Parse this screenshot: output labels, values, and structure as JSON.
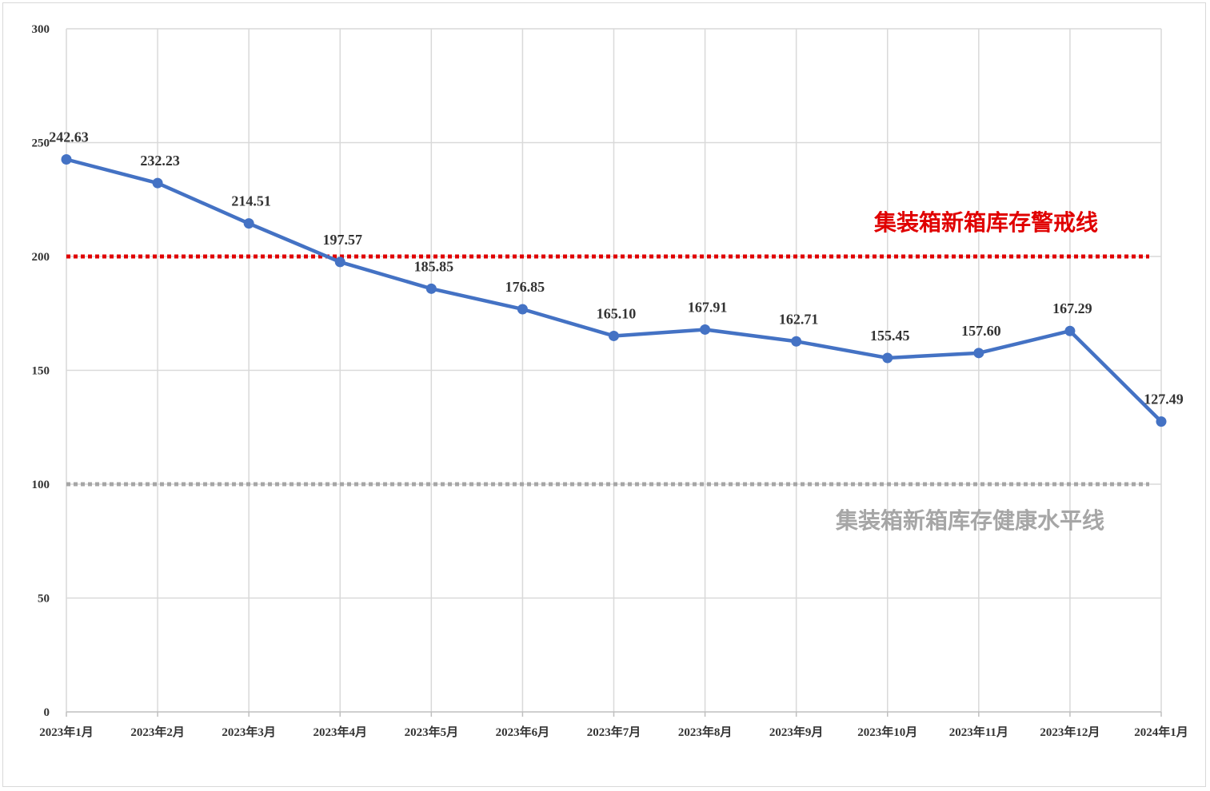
{
  "chart_data": {
    "type": "line",
    "categories": [
      "2023年1月",
      "2023年2月",
      "2023年3月",
      "2023年4月",
      "2023年5月",
      "2023年6月",
      "2023年7月",
      "2023年8月",
      "2023年9月",
      "2023年10月",
      "2023年11月",
      "2023年12月",
      "2024年1月"
    ],
    "series": [
      {
        "values": [
          242.63,
          232.23,
          214.51,
          197.57,
          185.85,
          176.85,
          165.1,
          167.91,
          162.71,
          155.45,
          157.6,
          167.29,
          127.49
        ],
        "labels": [
          "242.63",
          "232.23",
          "214.51",
          "197.57",
          "185.85",
          "176.85",
          "165.10",
          "167.91",
          "162.71",
          "155.45",
          "157.60",
          "167.29",
          "127.49"
        ],
        "color": "#4472c4"
      }
    ],
    "ylim": [
      0,
      300
    ],
    "yticks": [
      0,
      50,
      100,
      150,
      200,
      250,
      300
    ],
    "ytick_labels": [
      "0",
      "50",
      "100",
      "150",
      "200",
      "250",
      "300"
    ],
    "grid": true,
    "reference_lines": [
      {
        "value": 200,
        "label": "集装箱新箱库存警戒线",
        "color": "#e00000",
        "style": "dotted"
      },
      {
        "value": 100,
        "label": "集装箱新箱库存健康水平线",
        "color": "#a6a6a6",
        "style": "dotted"
      }
    ]
  }
}
